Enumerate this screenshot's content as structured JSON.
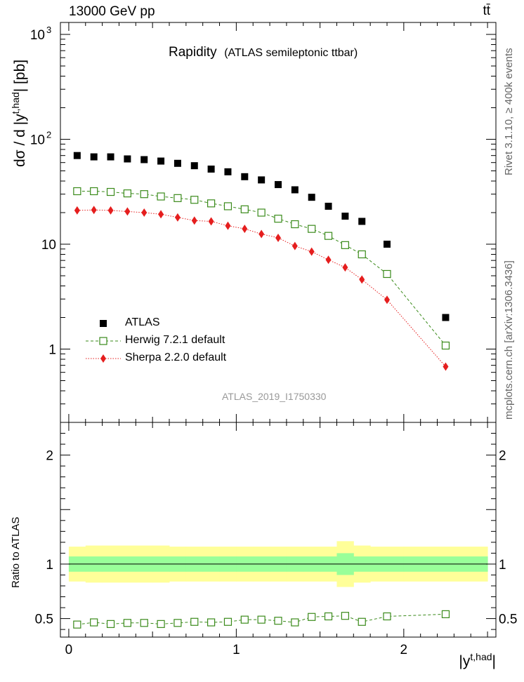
{
  "header": {
    "energy_label": "13000 GeV pp",
    "process_label": "tt̄"
  },
  "side": {
    "rivet": "Rivet 3.1.10, ≥ 400k events",
    "mcplots": "mcplots.cern.ch [arXiv:1306.3436]"
  },
  "chart_data": [
    {
      "type": "scatter",
      "title": "Rapidity",
      "subtitle": "(ATLAS semileptonic ttbar)",
      "ylabel": "dσ / d |y^{t,had}| [pb]",
      "ylabel_main": "dσ / d |y",
      "ylabel_sup": "t,had",
      "ylabel_tail": "| [pb]",
      "yscale": "log",
      "ylim": [
        0.2,
        1300
      ],
      "xlim": [
        -0.05,
        2.55
      ],
      "yticks": [
        {
          "value": 1,
          "label": "1"
        },
        {
          "value": 10,
          "label": "10"
        },
        {
          "value": 100,
          "label": "10",
          "sup": "2"
        },
        {
          "value": 1000,
          "label": "10",
          "sup": "3"
        }
      ],
      "watermark": "ATLAS_2019_I1750330",
      "legend_position": "bottom-left",
      "x": [
        0.05,
        0.15,
        0.25,
        0.35,
        0.45,
        0.55,
        0.65,
        0.75,
        0.85,
        0.95,
        1.05,
        1.15,
        1.25,
        1.35,
        1.45,
        1.55,
        1.65,
        1.75,
        1.9,
        2.25
      ],
      "series": [
        {
          "name": "ATLAS",
          "marker": "filled-square",
          "color": "#000000",
          "values": [
            70,
            68,
            68,
            65,
            64,
            62,
            59,
            56,
            52,
            49,
            44,
            41,
            37,
            33,
            28,
            23,
            18.5,
            16.5,
            10,
            2
          ]
        },
        {
          "name": "Herwig 7.2.1 default",
          "marker": "open-square",
          "color": "#3a8a1a",
          "values": [
            32,
            32,
            31.5,
            30.5,
            30,
            28.5,
            27.5,
            26.5,
            24.5,
            23,
            21.5,
            20,
            17.5,
            15.5,
            14,
            12,
            9.8,
            8,
            5.2,
            1.08
          ]
        },
        {
          "name": "Sherpa 2.2.0 default",
          "marker": "diamond",
          "color": "#e51e1e",
          "values": [
            21,
            21.2,
            21,
            20.5,
            20,
            19.3,
            18,
            16.8,
            16.5,
            15,
            14,
            12.5,
            11.5,
            9.6,
            8.5,
            7.1,
            6,
            4.6,
            2.95,
            0.68
          ]
        }
      ]
    },
    {
      "type": "line",
      "ylabel": "Ratio to ATLAS",
      "ylim": [
        0.33,
        2.3
      ],
      "xlim": [
        -0.05,
        2.55
      ],
      "yticks": [
        {
          "value": 0.5,
          "label": "0.5"
        },
        {
          "value": 1,
          "label": "1"
        },
        {
          "value": 2,
          "label": "2"
        }
      ],
      "xticks": [
        {
          "value": 0,
          "label": "0"
        },
        {
          "value": 1,
          "label": "1"
        },
        {
          "value": 2,
          "label": "2"
        }
      ],
      "xlabel": "|y^{t,had}|",
      "xlabel_main": "|y",
      "xlabel_sup": "t,had",
      "xlabel_tail": "|",
      "bin_edges": [
        0,
        0.1,
        0.2,
        0.3,
        0.4,
        0.5,
        0.6,
        0.7,
        0.8,
        0.9,
        1.0,
        1.1,
        1.2,
        1.3,
        1.4,
        1.5,
        1.6,
        1.7,
        1.8,
        2.0,
        2.5
      ],
      "band_total": [
        0.16,
        0.17,
        0.17,
        0.17,
        0.17,
        0.17,
        0.16,
        0.16,
        0.16,
        0.16,
        0.16,
        0.16,
        0.16,
        0.16,
        0.16,
        0.16,
        0.21,
        0.17,
        0.16,
        0.16
      ],
      "band_stat": [
        0.07,
        0.07,
        0.07,
        0.07,
        0.07,
        0.07,
        0.07,
        0.07,
        0.07,
        0.07,
        0.07,
        0.07,
        0.07,
        0.07,
        0.07,
        0.07,
        0.1,
        0.07,
        0.07,
        0.07
      ],
      "band_colors": {
        "total": "#ffff99",
        "stat": "#99ff99"
      },
      "series": [
        {
          "name": "Herwig 7.2.1 default",
          "color": "#3a8a1a",
          "values": [
            0.445,
            0.465,
            0.45,
            0.46,
            0.46,
            0.45,
            0.46,
            0.47,
            0.465,
            0.47,
            0.49,
            0.49,
            0.48,
            0.465,
            0.515,
            0.52,
            0.525,
            0.47,
            0.52,
            0.54
          ]
        }
      ]
    }
  ]
}
